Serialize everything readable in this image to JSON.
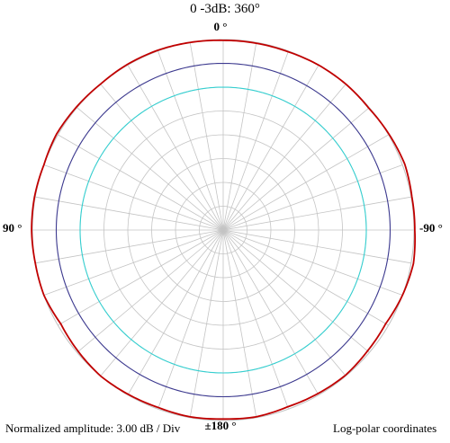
{
  "title": "0 -3dB:   360°",
  "footer": {
    "amplitude": "Normalized amplitude: 3.00 dB / Div",
    "coords": "Log-polar coordinates"
  },
  "chart_data": {
    "type": "polar",
    "title": "0 -3dB:   360°",
    "angle_labels": {
      "top": "0 °",
      "left": "90 °",
      "right": "-90 °",
      "bottom": "±180 °"
    },
    "angle_unit": "degrees",
    "amplitude_unit": "dB",
    "db_per_division": 3.0,
    "divisions": 8,
    "angular_grid_step_deg": 10,
    "grid": true,
    "series": [
      {
        "color": "#c00000",
        "angles_deg": [
          0,
          10,
          20,
          30,
          40,
          50,
          60,
          70,
          80,
          90,
          100,
          110,
          120,
          130,
          140,
          150,
          160,
          170,
          180,
          190,
          200,
          210,
          220,
          230,
          240,
          250,
          260,
          270,
          280,
          290,
          300,
          310,
          320,
          330,
          340,
          350
        ],
        "values_db": [
          -0.1,
          0.0,
          0.1,
          0.1,
          0.0,
          0.1,
          0.2,
          0.0,
          0.1,
          0.1,
          0.0,
          0.0,
          -0.4,
          -0.2,
          0.0,
          -0.1,
          -0.2,
          -0.1,
          -0.2,
          -0.1,
          -0.3,
          -0.2,
          -0.1,
          -0.3,
          -0.4,
          0.0,
          0.3,
          0.1,
          0.1,
          0.3,
          0.1,
          -0.1,
          0.0,
          0.0,
          -0.1,
          -0.1
        ]
      },
      {
        "color": "#3d3a90",
        "angles_deg": [
          0,
          90,
          180,
          270
        ],
        "values_db": [
          -3.0,
          -3.0,
          -3.0,
          -3.0
        ]
      },
      {
        "color": "#35cfd0",
        "angles_deg": [
          0,
          90,
          180,
          270
        ],
        "values_db": [
          -6.0,
          -6.0,
          -6.0,
          -6.0
        ]
      }
    ]
  }
}
